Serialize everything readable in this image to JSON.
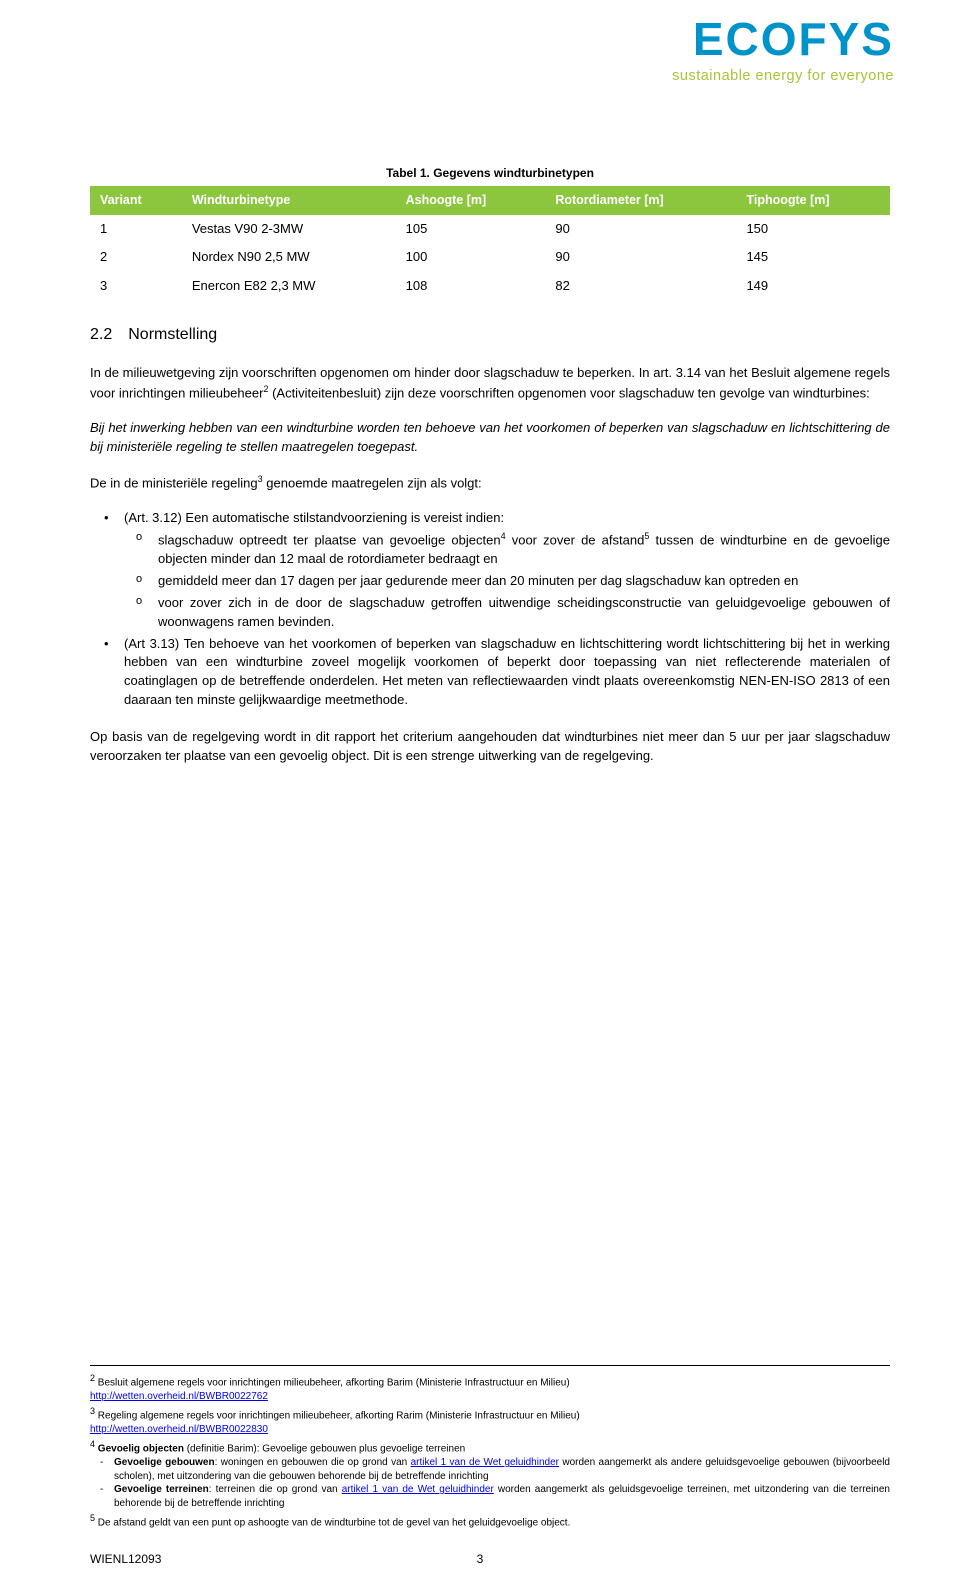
{
  "logo": {
    "brand": "ECOFYS",
    "tagline": "sustainable energy for everyone",
    "brand_color": "#0093c9",
    "tagline_color": "#a7c438"
  },
  "table": {
    "caption": "Tabel 1. Gegevens windturbinetypen",
    "header_bg": "#8cc63f",
    "header_fg": "#ffffff",
    "columns": [
      "Variant",
      "Windturbinetype",
      "Ashoogte [m]",
      "Rotordiameter [m]",
      "Tiphoogte [m]"
    ],
    "rows": [
      [
        "1",
        "Vestas V90 2-3MW",
        "105",
        "90",
        "150"
      ],
      [
        "2",
        "Nordex N90 2,5 MW",
        "100",
        "90",
        "145"
      ],
      [
        "3",
        "Enercon E82 2,3 MW",
        "108",
        "82",
        "149"
      ]
    ]
  },
  "section": {
    "num": "2.2",
    "title": "Normstelling"
  },
  "para1_a": "In de milieuwetgeving zijn voorschriften opgenomen om hinder door slagschaduw te beperken. In art. 3.14 van het Besluit algemene regels voor inrichtingen milieubeheer",
  "para1_sup": "2",
  "para1_b": " (Activiteitenbesluit) zijn deze voorschriften opgenomen voor slagschaduw ten gevolge van windturbines:",
  "para_ital": "Bij het inwerking hebben van een windturbine worden ten behoeve van het voorkomen of beperken van slagschaduw en lichtschittering de bij ministeriële regeling te stellen maatregelen toegepast.",
  "para3_a": "De in de ministeriële regeling",
  "para3_sup": "3",
  "para3_b": " genoemde maatregelen zijn als volgt:",
  "bullets": {
    "b1_lead": "(Art. 3.12) Een automatische stilstandvoorziening is vereist indien:",
    "b1_s1_a": "slagschaduw optreedt ter plaatse van gevoelige objecten",
    "b1_s1_sup4": "4",
    "b1_s1_b": " voor zover de afstand",
    "b1_s1_sup5": "5",
    "b1_s1_c": " tussen de windturbine en de gevoelige objecten minder dan 12 maal de rotordiameter bedraagt en",
    "b1_s2": "gemiddeld meer dan 17 dagen per jaar gedurende meer dan 20 minuten per dag slagschaduw kan optreden en",
    "b1_s3": "voor zover zich in de door de slagschaduw getroffen uitwendige scheidingsconstructie van geluidgevoelige gebouwen of woonwagens ramen bevinden.",
    "b2": "(Art 3.13) Ten behoeve van het voorkomen of beperken van slagschaduw en lichtschittering wordt lichtschittering bij het in werking hebben van een windturbine zoveel mogelijk voorkomen of beperkt door toepassing van niet reflecterende materialen of coatinglagen op de betreffende onderdelen. Het meten van reflectiewaarden vindt plaats overeenkomstig NEN-EN-ISO 2813 of een daaraan ten minste gelijkwaardige meetmethode."
  },
  "para_last": "Op basis van de regelgeving wordt in dit rapport het criterium aangehouden dat windturbines niet meer dan 5 uur per jaar slagschaduw veroorzaken ter plaatse van een gevoelig object. Dit is een strenge uitwerking van de regelgeving.",
  "footnotes": {
    "f2_text": "Besluit algemene regels voor inrichtingen milieubeheer, afkorting Barim (Ministerie Infrastructuur en Milieu)",
    "f2_link": "http://wetten.overheid.nl/BWBR0022762",
    "f3_text": "Regeling algemene regels voor inrichtingen milieubeheer, afkorting Rarim (Ministerie Infrastructuur en Milieu)",
    "f3_link": "http://wetten.overheid.nl/BWBR0022830",
    "f4_lead_bold": "Gevoelig objecten",
    "f4_lead_rest": " (definitie Barim): Gevoelige gebouwen plus gevoelige terreinen",
    "f4_a_bold": "Gevoelige gebouwen",
    "f4_a_rest": ": woningen en gebouwen die op grond van ",
    "f4_a_link": "artikel 1 van de Wet geluidhinder",
    "f4_a_tail": " worden aangemerkt als andere geluidsgevoelige gebouwen (bijvoorbeeld scholen), met uitzondering van die gebouwen behorende bij de betreffende inrichting",
    "f4_b_bold": "Gevoelige terreinen",
    "f4_b_rest": ": terreinen die op grond van ",
    "f4_b_link": "artikel 1 van de Wet geluidhinder",
    "f4_b_tail": " worden aangemerkt als geluidsgevoelige terreinen, met uitzondering van die terreinen behorende bij de betreffende inrichting",
    "f5": "De afstand geldt van een punt op ashoogte van de windturbine tot de gevel van het geluidgevoelige object."
  },
  "footer": {
    "code": "WIENL12093",
    "page": "3"
  }
}
